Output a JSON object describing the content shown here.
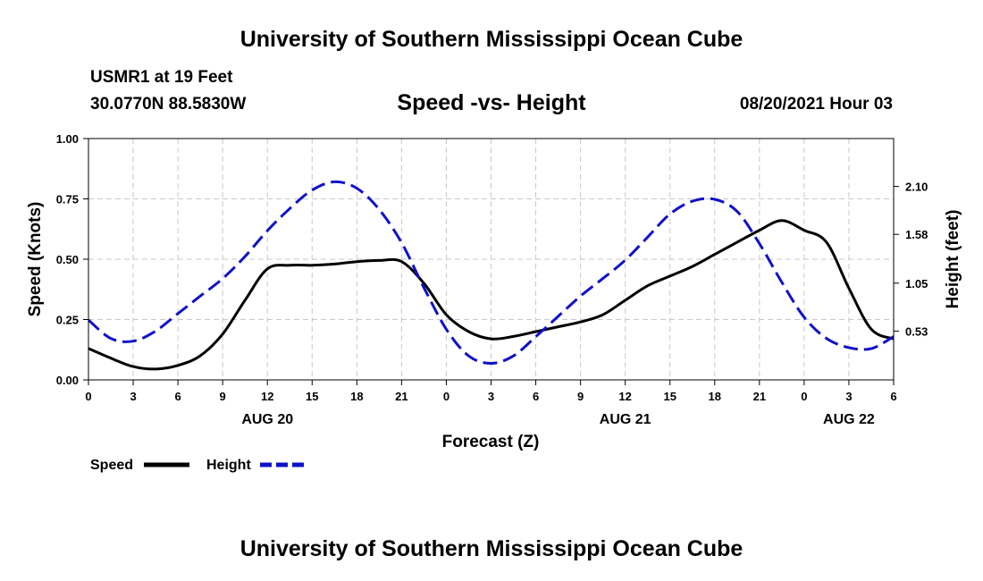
{
  "header": {
    "title_top": "University of Southern Mississippi Ocean Cube",
    "station": "USMR1 at 19 Feet",
    "coords": "30.0770N  88.5830W",
    "chart_title": "Speed -vs- Height",
    "datetime": "08/20/2021 Hour 03",
    "title_bottom": "University of Southern Mississippi Ocean Cube"
  },
  "colors": {
    "speed": "#000000",
    "height": "#1010c8",
    "grid": "#c8c8c8"
  },
  "chart_data": {
    "type": "line",
    "title": "Speed -vs- Height",
    "xlabel": "Forecast (Z)",
    "ylabel": "Speed (Knots)",
    "y2label": "Height (feet)",
    "xlim": [
      0,
      54
    ],
    "ylim": [
      0,
      1
    ],
    "y2lim": [
      0.0,
      2.62
    ],
    "grid": true,
    "x_ticks": [
      0,
      3,
      6,
      9,
      12,
      15,
      18,
      21,
      24,
      27,
      30,
      33,
      36,
      39,
      42,
      45,
      48,
      51,
      54
    ],
    "x_tick_labels": [
      "0",
      "3",
      "6",
      "9",
      "12",
      "15",
      "18",
      "21",
      "0",
      "3",
      "6",
      "9",
      "12",
      "15",
      "18",
      "21",
      "0",
      "3",
      "6"
    ],
    "y_ticks": [
      0,
      0.25,
      0.5,
      0.75,
      1.0
    ],
    "y_tick_labels": [
      "0.00",
      "0.25",
      "0.50",
      "0.75",
      "1.00"
    ],
    "y2_ticks": [
      0.53,
      1.05,
      1.58,
      2.1
    ],
    "y2_tick_labels": [
      "0.53",
      "1.05",
      "1.58",
      "2.10"
    ],
    "day_labels": [
      {
        "x": 12,
        "label": "AUG 20"
      },
      {
        "x": 36,
        "label": "AUG 21"
      },
      {
        "x": 51,
        "label": "AUG 22"
      }
    ],
    "legend": [
      "Speed",
      "Height"
    ],
    "series": [
      {
        "name": "Speed",
        "axis": "left",
        "style": "solid",
        "x": [
          0,
          1.5,
          3,
          4.5,
          6,
          7.5,
          9,
          10.5,
          12,
          13.5,
          15,
          16.5,
          18,
          19.5,
          21,
          22.5,
          24,
          25.5,
          27,
          28.5,
          30,
          31.5,
          33,
          34.5,
          36,
          37.5,
          39,
          40.5,
          42,
          43.5,
          45,
          46.5,
          48,
          49.5,
          51,
          52.5,
          54
        ],
        "y": [
          0.13,
          0.09,
          0.055,
          0.045,
          0.06,
          0.1,
          0.19,
          0.33,
          0.46,
          0.475,
          0.475,
          0.48,
          0.49,
          0.495,
          0.49,
          0.4,
          0.27,
          0.2,
          0.17,
          0.18,
          0.2,
          0.22,
          0.24,
          0.27,
          0.33,
          0.39,
          0.43,
          0.47,
          0.52,
          0.57,
          0.62,
          0.66,
          0.62,
          0.57,
          0.38,
          0.21,
          0.17
        ]
      },
      {
        "name": "Height",
        "axis": "right",
        "style": "dashed",
        "x": [
          0,
          1.5,
          3,
          4.5,
          6,
          7.5,
          9,
          10.5,
          12,
          13.5,
          15,
          16.5,
          18,
          19.5,
          21,
          22.5,
          24,
          25.5,
          27,
          28.5,
          30,
          31.5,
          33,
          34.5,
          36,
          37.5,
          39,
          40.5,
          42,
          43.5,
          45,
          46.5,
          48,
          49.5,
          51,
          52.5,
          54
        ],
        "y": [
          0.65,
          0.45,
          0.42,
          0.53,
          0.72,
          0.91,
          1.1,
          1.34,
          1.62,
          1.86,
          2.06,
          2.15,
          2.08,
          1.85,
          1.49,
          1.0,
          0.55,
          0.26,
          0.18,
          0.26,
          0.47,
          0.69,
          0.91,
          1.1,
          1.3,
          1.55,
          1.8,
          1.94,
          1.96,
          1.83,
          1.48,
          1.06,
          0.68,
          0.45,
          0.35,
          0.34,
          0.47
        ]
      }
    ]
  }
}
